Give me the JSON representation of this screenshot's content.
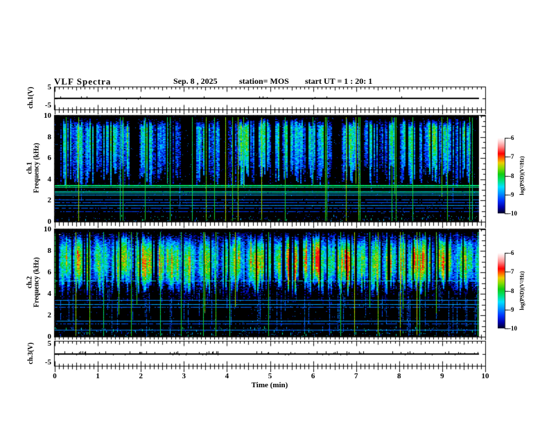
{
  "header": {
    "title": "VLF Spectra",
    "date": "Sep. 8 , 2025",
    "station": "station= MOS",
    "start_ut": "start UT =  1 : 20: 1"
  },
  "xaxis": {
    "label": "Time (min)",
    "ticks": [
      "0",
      "1",
      "2",
      "3",
      "4",
      "5",
      "6",
      "7",
      "8",
      "9",
      "10"
    ]
  },
  "panels": {
    "wave1": {
      "label": "ch.1(V)",
      "ymax": "5",
      "ymin": "-5"
    },
    "spec1": {
      "label_ch": "ch.1",
      "label_axis": "Frequency (kHz)",
      "yticks": [
        "10",
        "8",
        "6",
        "4",
        "2",
        "0"
      ]
    },
    "spec2": {
      "label_ch": "ch.2",
      "label_axis": "Frequency (kHz)",
      "yticks": [
        "10",
        "8",
        "6",
        "4",
        "2",
        "0"
      ]
    },
    "wave3": {
      "label": "ch.3(V)",
      "ymax": "5",
      "ymin": "-5"
    }
  },
  "colorbar": {
    "label": "log(PSD)(V²/Hz)",
    "ticks": [
      "-6",
      "-7",
      "-8",
      "-9",
      "-10"
    ],
    "value_range": [
      -10,
      -6
    ],
    "stops": [
      [
        0,
        "#000022"
      ],
      [
        0.08,
        "#0000aa"
      ],
      [
        0.17,
        "#0033ff"
      ],
      [
        0.26,
        "#0090ff"
      ],
      [
        0.35,
        "#00e0ff"
      ],
      [
        0.44,
        "#00e070"
      ],
      [
        0.52,
        "#11cc11"
      ],
      [
        0.6,
        "#88dd00"
      ],
      [
        0.67,
        "#eecc00"
      ],
      [
        0.73,
        "#ff6600"
      ],
      [
        0.79,
        "#ff0000"
      ],
      [
        0.88,
        "#ff8888"
      ],
      [
        0.95,
        "#ffd5d5"
      ],
      [
        1,
        "#ffffff"
      ]
    ]
  },
  "chart_data": [
    {
      "id": "ch1_waveform",
      "type": "line",
      "ylabel": "ch.1(V)",
      "x_range_min": [
        0,
        10
      ],
      "y_range_V": [
        -5,
        5
      ],
      "data_end_min": 9.85,
      "description": "near-flat trace at 0 V with sparse tiny spikes",
      "render": {
        "seed": 303,
        "spikeProb": 0.02,
        "spikeMax": 1.5
      }
    },
    {
      "id": "ch1_spectrogram",
      "type": "heatmap",
      "ylabel": "ch.1 Frequency (kHz)",
      "x_range_min": [
        0,
        10
      ],
      "y_range_kHz": [
        0,
        10
      ],
      "z_range_logPSD": [
        -10,
        -6
      ],
      "data_end_min": 9.85,
      "description": "impulsive broadband bursts 4-10 kHz (blue/cyan/green) over black; persistent narrowband lines below 3.5 kHz",
      "hlines_kHz": [
        3.45,
        3.25,
        2.9,
        2.75,
        2.55,
        2.1,
        1.85,
        1.55,
        1.3,
        0.95
      ],
      "render": {
        "seed": 101,
        "fTop": 9.85,
        "fBot": 4.3,
        "fBotJit": 1.0,
        "ampMin": 0.2,
        "ampMax": 0.52,
        "vMax": 0.62,
        "profile": "top",
        "gapProb": 0.28,
        "gapLen": 5,
        "burstLen": 13,
        "colGap": 0.27,
        "tailProb": 0.05,
        "brightLines": 32,
        "speckleDen": 2,
        "speckleF": 0.5,
        "dots": 900,
        "hLines": [
          {
            "f": 3.45,
            "v": 0.44,
            "w": 2
          },
          {
            "f": 3.25,
            "v": 0.42,
            "w": 1
          },
          {
            "f": 2.9,
            "v": 0.4,
            "w": 1
          },
          {
            "f": 2.75,
            "v": 0.36,
            "w": 1
          },
          {
            "f": 2.55,
            "v": 0.3,
            "w": 1
          },
          {
            "f": 2.1,
            "v": 0.22,
            "w": 1,
            "gap": 0.1
          },
          {
            "f": 1.85,
            "v": 0.2,
            "w": 1,
            "gap": 0.15
          },
          {
            "f": 1.55,
            "v": 0.27,
            "w": 1
          },
          {
            "f": 1.3,
            "v": 0.2,
            "w": 1,
            "gap": 0.2
          },
          {
            "f": 0.95,
            "v": 0.18,
            "w": 1,
            "gap": 0.3
          }
        ]
      }
    },
    {
      "id": "ch2_spectrogram",
      "type": "heatmap",
      "ylabel": "ch.2 Frequency (kHz)",
      "x_range_min": [
        0,
        10
      ],
      "y_range_kHz": [
        0,
        10
      ],
      "z_range_logPSD": [
        -10,
        -6
      ],
      "data_end_min": 9.85,
      "description": "dense continuous emission 3.6-9.7 kHz, green/yellow with red cores, blue tails to 0 kHz; narrowband blue lines below 3.5 kHz",
      "hlines_kHz": [
        5.2,
        3.4,
        3.05,
        2.8,
        1.5,
        1.25,
        0.65
      ],
      "render": {
        "seed": 202,
        "fTop": 9.7,
        "fBot": 3.9,
        "fBotJit": 0.9,
        "ampMin": 0.45,
        "ampMax": 0.74,
        "vMax": 0.8,
        "profile": "mid",
        "gapProb": 0.16,
        "gapLen": 3,
        "burstLen": 18,
        "colGap": 0.17,
        "tailProb": 0.28,
        "brightLines": 26,
        "speckleDen": 3,
        "speckleF": 0.8,
        "dots": 700,
        "hLines": [
          {
            "f": 5.2,
            "v": 0.36,
            "w": 1,
            "gap": 0.3
          },
          {
            "f": 3.4,
            "v": 0.25,
            "w": 1
          },
          {
            "f": 3.05,
            "v": 0.28,
            "w": 1
          },
          {
            "f": 2.8,
            "v": 0.22,
            "w": 1,
            "gap": 0.2
          },
          {
            "f": 1.5,
            "v": 0.26,
            "w": 1
          },
          {
            "f": 1.25,
            "v": 0.2,
            "w": 1,
            "gap": 0.2
          },
          {
            "f": 0.65,
            "v": 0.24,
            "w": 1
          }
        ]
      }
    },
    {
      "id": "ch3_waveform",
      "type": "line",
      "ylabel": "ch.3(V)",
      "x_range_min": [
        0,
        10
      ],
      "y_range_V": [
        -5,
        5
      ],
      "data_end_min": 9.85,
      "description": "near-flat trace at 0 V with frequent small positive noise spikes",
      "render": {
        "seed": 404,
        "spikeProb": 0.12,
        "spikeMax": 2.5
      }
    }
  ]
}
